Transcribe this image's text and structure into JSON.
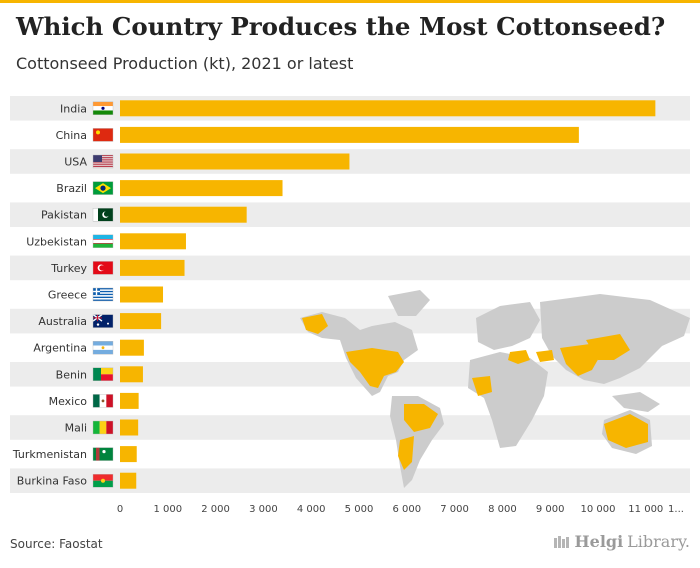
{
  "title": "Which Country Produces the Most Cottonseed?",
  "subtitle": "Cottonseed Production (kt), 2021 or latest",
  "source": "Source: Faostat",
  "logo": {
    "brand": "Helgi",
    "suffix": "Library."
  },
  "colors": {
    "bar": "#f7b500",
    "map_land": "#cccccc",
    "map_highlight": "#f7b500",
    "band": "#ececec",
    "accent": "#f7b500"
  },
  "chart_data": {
    "type": "bar",
    "orientation": "horizontal",
    "categories": [
      "India",
      "China",
      "USA",
      "Brazil",
      "Pakistan",
      "Uzbekistan",
      "Turkey",
      "Greece",
      "Australia",
      "Argentina",
      "Benin",
      "Mexico",
      "Mali",
      "Turkmenistan",
      "Burkina Faso"
    ],
    "values": [
      11200,
      9600,
      4800,
      3400,
      2650,
      1380,
      1350,
      900,
      860,
      500,
      480,
      390,
      380,
      350,
      340
    ],
    "flags": [
      "india-flag",
      "china-flag",
      "usa-flag",
      "brazil-flag",
      "pakistan-flag",
      "uzbekistan-flag",
      "turkey-flag",
      "greece-flag",
      "australia-flag",
      "argentina-flag",
      "benin-flag",
      "mexico-flag",
      "mali-flag",
      "turkmenistan-flag",
      "burkina-faso-flag"
    ],
    "x_ticks": [
      "0",
      "1 000",
      "2 000",
      "3 000",
      "4 000",
      "5 000",
      "6 000",
      "7 000",
      "8 000",
      "9 000",
      "10 000",
      "11 000",
      "1..."
    ],
    "xlim": [
      0,
      12000
    ],
    "grid": false,
    "legend": "none",
    "annotation": "world-map-background"
  }
}
